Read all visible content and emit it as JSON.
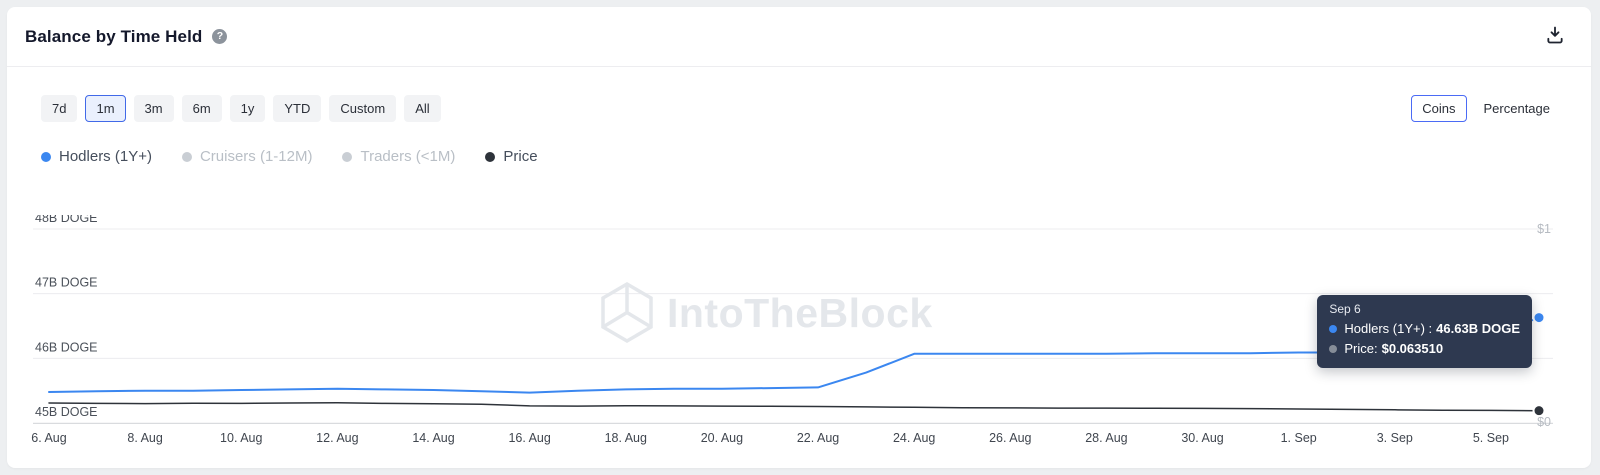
{
  "header": {
    "title": "Balance by Time Held",
    "help_icon_text": "?"
  },
  "controls": {
    "time_ranges": [
      {
        "label": "7d",
        "selected": false
      },
      {
        "label": "1m",
        "selected": true
      },
      {
        "label": "3m",
        "selected": false
      },
      {
        "label": "6m",
        "selected": false
      },
      {
        "label": "1y",
        "selected": false
      },
      {
        "label": "YTD",
        "selected": false
      },
      {
        "label": "Custom",
        "selected": false
      },
      {
        "label": "All",
        "selected": false
      }
    ],
    "unit_toggle": [
      {
        "label": "Coins",
        "selected": true
      },
      {
        "label": "Percentage",
        "selected": false
      }
    ]
  },
  "legend": [
    {
      "label": "Hodlers (1Y+)",
      "color": "#3b87f0",
      "active": true
    },
    {
      "label": "Cruisers (1-12M)",
      "color": "#c9ced4",
      "active": false
    },
    {
      "label": "Traders (<1M)",
      "color": "#c9ced4",
      "active": false
    },
    {
      "label": "Price",
      "color": "#2e333a",
      "active": true
    }
  ],
  "watermark": "IntoTheBlock",
  "chart_data": {
    "type": "line",
    "title": "Balance by Time Held",
    "x": [
      "Aug 6",
      "Aug 7",
      "Aug 8",
      "Aug 9",
      "Aug 10",
      "Aug 11",
      "Aug 12",
      "Aug 13",
      "Aug 14",
      "Aug 15",
      "Aug 16",
      "Aug 17",
      "Aug 18",
      "Aug 19",
      "Aug 20",
      "Aug 21",
      "Aug 22",
      "Aug 23",
      "Aug 24",
      "Aug 25",
      "Aug 26",
      "Aug 27",
      "Aug 28",
      "Aug 29",
      "Aug 30",
      "Aug 31",
      "Sep 1",
      "Sep 2",
      "Sep 3",
      "Sep 4",
      "Sep 5",
      "Sep 6"
    ],
    "x_tick_labels": [
      "6. Aug",
      "8. Aug",
      "10. Aug",
      "12. Aug",
      "14. Aug",
      "16. Aug",
      "18. Aug",
      "20. Aug",
      "22. Aug",
      "24. Aug",
      "26. Aug",
      "28. Aug",
      "30. Aug",
      "1. Sep",
      "3. Sep",
      "5. Sep"
    ],
    "left_axis": {
      "unit": "B DOGE",
      "range": [
        45,
        48
      ],
      "ticks": [
        45,
        46,
        47,
        48
      ],
      "tick_labels": [
        "45B DOGE",
        "46B DOGE",
        "47B DOGE",
        "48B DOGE"
      ]
    },
    "right_axis": {
      "range": [
        0,
        1
      ],
      "ticks": [
        1,
        0
      ],
      "tick_labels": [
        "$1",
        "$0"
      ]
    },
    "grid": true,
    "legend_position": "top-left",
    "series": [
      {
        "name": "Hodlers (1Y+)",
        "axis": "left",
        "color": "#3b87f0",
        "width": 2,
        "values": [
          45.48,
          45.49,
          45.5,
          45.5,
          45.51,
          45.52,
          45.53,
          45.52,
          45.51,
          45.49,
          45.47,
          45.5,
          45.52,
          45.53,
          45.53,
          45.54,
          45.55,
          45.78,
          46.07,
          46.07,
          46.07,
          46.07,
          46.07,
          46.08,
          46.08,
          46.08,
          46.09,
          46.09,
          46.1,
          46.15,
          46.35,
          46.63
        ]
      },
      {
        "name": "Price",
        "axis": "right",
        "color": "#2e333a",
        "width": 1.5,
        "values": [
          0.103,
          0.101,
          0.1,
          0.102,
          0.101,
          0.103,
          0.104,
          0.101,
          0.099,
          0.097,
          0.088,
          0.087,
          0.089,
          0.088,
          0.087,
          0.086,
          0.085,
          0.083,
          0.081,
          0.079,
          0.078,
          0.077,
          0.077,
          0.076,
          0.075,
          0.074,
          0.072,
          0.07,
          0.068,
          0.066,
          0.065,
          0.0635
        ]
      }
    ]
  },
  "tooltip": {
    "date": "Sep 6",
    "rows": [
      {
        "dot_color": "#3b87f0",
        "label": "Hodlers (1Y+) : ",
        "value": "46.63B DOGE"
      },
      {
        "dot_color": "#868d98",
        "label": "Price: ",
        "value": "$0.063510"
      }
    ]
  }
}
